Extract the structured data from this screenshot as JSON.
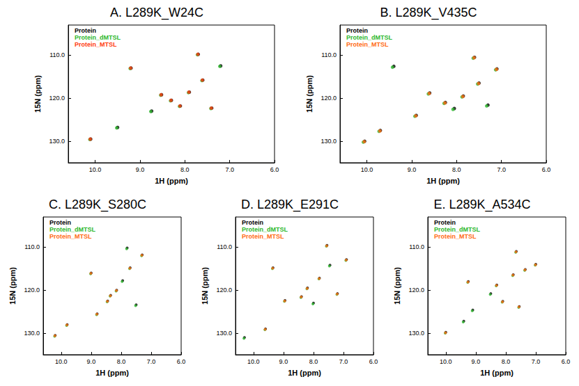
{
  "chart_data": [
    {
      "type": "scatter",
      "title": "A. L289K_W24C",
      "x_label": "1H (ppm)",
      "y_label": "15N (ppm)",
      "xlim": [
        10.6,
        6.0
      ],
      "ylim": [
        135,
        103
      ],
      "xticks": [
        {
          "value": 10,
          "label": "10.0"
        },
        {
          "value": 9,
          "label": "9.0"
        },
        {
          "value": 8,
          "label": "8.0"
        },
        {
          "value": 7,
          "label": "7.0"
        },
        {
          "value": 6,
          "label": "6.0"
        }
      ],
      "yticks": [
        {
          "value": 110,
          "label": "110.0"
        },
        {
          "value": 120,
          "label": "120.0"
        },
        {
          "value": 130,
          "label": "130.0"
        }
      ],
      "grid": false,
      "legend": "upper left",
      "marker": "circle",
      "series": [
        {
          "name": "Protein",
          "color": "#000000",
          "values": [
            [
              8.3,
              120.5
            ],
            [
              8.1,
              121.8
            ],
            [
              8.52,
              119.2
            ],
            [
              7.9,
              118.6
            ],
            [
              8.74,
              123.0
            ],
            [
              7.6,
              115.8
            ],
            [
              9.2,
              113.0
            ],
            [
              7.7,
              109.8
            ],
            [
              7.2,
              112.5
            ],
            [
              10.1,
              129.5
            ],
            [
              9.5,
              126.8
            ],
            [
              7.4,
              122.3
            ]
          ]
        },
        {
          "name": "Protein_dMTSL",
          "color": "#2eb82e",
          "values": [
            [
              8.32,
              120.6
            ],
            [
              8.12,
              121.9
            ],
            [
              8.54,
              119.3
            ],
            [
              7.92,
              118.7
            ],
            [
              8.76,
              123.1
            ],
            [
              7.62,
              115.9
            ],
            [
              9.22,
              113.1
            ],
            [
              7.72,
              109.9
            ],
            [
              7.22,
              112.6
            ],
            [
              10.12,
              129.6
            ],
            [
              9.52,
              126.9
            ],
            [
              7.42,
              122.4
            ]
          ]
        },
        {
          "name": "Protein_MTSL",
          "color": "#ff3b10",
          "values": [
            [
              8.31,
              120.5
            ],
            [
              8.11,
              121.8
            ],
            [
              8.53,
              119.2
            ],
            [
              7.91,
              118.6
            ],
            [
              7.61,
              115.8
            ],
            [
              9.21,
              113.0
            ],
            [
              7.71,
              109.8
            ],
            [
              10.11,
              129.5
            ],
            [
              7.41,
              122.3
            ]
          ]
        }
      ]
    },
    {
      "type": "scatter",
      "title": "B. L289K_V435C",
      "x_label": "1H (ppm)",
      "y_label": "15N (ppm)",
      "xlim": [
        10.6,
        6.0
      ],
      "ylim": [
        135,
        103
      ],
      "xticks": [
        {
          "value": 10,
          "label": "10.0"
        },
        {
          "value": 9,
          "label": "9.0"
        },
        {
          "value": 8,
          "label": "8.0"
        },
        {
          "value": 7,
          "label": "7.0"
        },
        {
          "value": 6,
          "label": "6.0"
        }
      ],
      "yticks": [
        {
          "value": 110,
          "label": "110.0"
        },
        {
          "value": 120,
          "label": "120.0"
        },
        {
          "value": 130,
          "label": "130.0"
        }
      ],
      "grid": false,
      "legend": "upper left",
      "marker": "circle",
      "series": [
        {
          "name": "Protein",
          "color": "#000000",
          "values": [
            [
              8.25,
              121.0
            ],
            [
              8.05,
              122.4
            ],
            [
              8.6,
              118.8
            ],
            [
              7.85,
              119.5
            ],
            [
              8.9,
              124.0
            ],
            [
              7.5,
              116.5
            ],
            [
              9.4,
              112.6
            ],
            [
              7.6,
              110.5
            ],
            [
              7.1,
              113.2
            ],
            [
              10.05,
              130.0
            ],
            [
              9.7,
              127.5
            ],
            [
              7.3,
              121.6
            ]
          ]
        },
        {
          "name": "Protein_dMTSL",
          "color": "#2eb82e",
          "values": [
            [
              8.28,
              121.2
            ],
            [
              8.08,
              122.6
            ],
            [
              8.63,
              119.0
            ],
            [
              7.88,
              119.7
            ],
            [
              8.93,
              124.2
            ],
            [
              7.53,
              116.7
            ],
            [
              9.43,
              112.8
            ],
            [
              7.63,
              110.7
            ],
            [
              7.13,
              113.4
            ],
            [
              10.08,
              130.2
            ],
            [
              9.73,
              127.7
            ],
            [
              7.33,
              121.8
            ]
          ]
        },
        {
          "name": "Protein_MTSL",
          "color": "#ff6a13",
          "values": [
            [
              8.26,
              121.1
            ],
            [
              8.61,
              118.9
            ],
            [
              7.86,
              119.6
            ],
            [
              8.91,
              124.1
            ],
            [
              7.51,
              116.6
            ],
            [
              7.61,
              110.6
            ],
            [
              7.11,
              113.3
            ],
            [
              10.06,
              130.1
            ],
            [
              9.71,
              127.6
            ]
          ]
        }
      ]
    },
    {
      "type": "scatter",
      "title": "C. L289K_S280C",
      "x_label": "1H (ppm)",
      "y_label": "15N (ppm)",
      "xlim": [
        10.6,
        6.0
      ],
      "ylim": [
        135,
        103
      ],
      "xticks": [
        {
          "value": 10,
          "label": "10.0"
        },
        {
          "value": 9,
          "label": "9.0"
        },
        {
          "value": 8,
          "label": "8.0"
        },
        {
          "value": 7,
          "label": "7.0"
        },
        {
          "value": 6,
          "label": "6.0"
        }
      ],
      "yticks": [
        {
          "value": 110,
          "label": "110.0"
        },
        {
          "value": 120,
          "label": "120.0"
        },
        {
          "value": 130,
          "label": "130.0"
        }
      ],
      "grid": false,
      "legend": "upper left",
      "marker": "circle",
      "series": [
        {
          "name": "Protein",
          "color": "#000000",
          "values": [
            [
              8.35,
              121.2
            ],
            [
              8.15,
              120.0
            ],
            [
              8.45,
              122.5
            ],
            [
              7.95,
              117.8
            ],
            [
              8.8,
              125.5
            ],
            [
              7.7,
              114.8
            ],
            [
              9.0,
              116.0
            ],
            [
              7.8,
              110.2
            ],
            [
              7.3,
              111.8
            ],
            [
              10.2,
              130.5
            ],
            [
              9.8,
              128.0
            ],
            [
              7.5,
              123.4
            ]
          ]
        },
        {
          "name": "Protein_dMTSL",
          "color": "#2eb82e",
          "values": [
            [
              8.37,
              121.4
            ],
            [
              8.17,
              120.2
            ],
            [
              8.47,
              122.7
            ],
            [
              7.97,
              118.0
            ],
            [
              8.82,
              125.7
            ],
            [
              7.72,
              115.0
            ],
            [
              9.02,
              116.2
            ],
            [
              7.82,
              110.4
            ],
            [
              7.32,
              112.0
            ],
            [
              10.22,
              130.7
            ],
            [
              9.82,
              128.2
            ],
            [
              7.52,
              123.6
            ]
          ]
        },
        {
          "name": "Protein_MTSL",
          "color": "#ff6a13",
          "values": [
            [
              8.36,
              121.3
            ],
            [
              8.16,
              120.1
            ],
            [
              8.46,
              122.6
            ],
            [
              8.81,
              125.6
            ],
            [
              7.71,
              114.9
            ],
            [
              9.01,
              116.1
            ],
            [
              7.31,
              111.9
            ],
            [
              10.21,
              130.6
            ],
            [
              9.81,
              128.1
            ]
          ]
        }
      ]
    },
    {
      "type": "scatter",
      "title": "D. L289K_E291C",
      "x_label": "1H (ppm)",
      "y_label": "15N (ppm)",
      "xlim": [
        10.6,
        6.0
      ],
      "ylim": [
        135,
        103
      ],
      "xticks": [
        {
          "value": 10,
          "label": "10.0"
        },
        {
          "value": 9,
          "label": "9.0"
        },
        {
          "value": 8,
          "label": "8.0"
        },
        {
          "value": 7,
          "label": "7.0"
        },
        {
          "value": 6,
          "label": "6.0"
        }
      ],
      "yticks": [
        {
          "value": 110,
          "label": "110.0"
        },
        {
          "value": 120,
          "label": "120.0"
        },
        {
          "value": 130,
          "label": "130.0"
        }
      ],
      "grid": false,
      "legend": "upper left",
      "marker": "circle",
      "series": [
        {
          "name": "Protein",
          "color": "#000000",
          "values": [
            [
              8.2,
              119.5
            ],
            [
              8.4,
              121.5
            ],
            [
              8.0,
              123.0
            ],
            [
              7.8,
              117.2
            ],
            [
              8.95,
              122.4
            ],
            [
              7.45,
              114.2
            ],
            [
              9.35,
              114.8
            ],
            [
              7.55,
              109.6
            ],
            [
              6.9,
              112.9
            ],
            [
              10.3,
              131.0
            ],
            [
              9.6,
              129.0
            ],
            [
              7.2,
              120.8
            ]
          ]
        },
        {
          "name": "Protein_dMTSL",
          "color": "#2eb82e",
          "values": [
            [
              8.22,
              119.7
            ],
            [
              8.42,
              121.7
            ],
            [
              8.02,
              123.2
            ],
            [
              7.82,
              117.4
            ],
            [
              8.97,
              122.6
            ],
            [
              7.47,
              114.4
            ],
            [
              9.37,
              115.0
            ],
            [
              7.57,
              109.8
            ],
            [
              6.92,
              113.1
            ],
            [
              10.32,
              131.2
            ],
            [
              9.62,
              129.2
            ],
            [
              7.22,
              121.0
            ]
          ]
        },
        {
          "name": "Protein_MTSL",
          "color": "#ff6a13",
          "values": [
            [
              8.21,
              119.6
            ],
            [
              8.41,
              121.6
            ],
            [
              7.81,
              117.3
            ],
            [
              8.96,
              122.5
            ],
            [
              9.36,
              114.9
            ],
            [
              7.56,
              109.7
            ],
            [
              6.91,
              113.0
            ],
            [
              9.61,
              129.1
            ],
            [
              7.21,
              120.9
            ]
          ]
        }
      ]
    },
    {
      "type": "scatter",
      "title": "E. L289K_A534C",
      "x_label": "1H (ppm)",
      "y_label": "15N (ppm)",
      "xlim": [
        10.6,
        6.0
      ],
      "ylim": [
        135,
        103
      ],
      "xticks": [
        {
          "value": 10,
          "label": "10.0"
        },
        {
          "value": 9,
          "label": "9.0"
        },
        {
          "value": 8,
          "label": "8.0"
        },
        {
          "value": 7,
          "label": "7.0"
        },
        {
          "value": 6,
          "label": "6.0"
        }
      ],
      "yticks": [
        {
          "value": 110,
          "label": "110.0"
        },
        {
          "value": 120,
          "label": "120.0"
        },
        {
          "value": 130,
          "label": "130.0"
        }
      ],
      "grid": false,
      "legend": "upper left",
      "marker": "circle",
      "series": [
        {
          "name": "Protein",
          "color": "#000000",
          "values": [
            [
              8.3,
              118.8
            ],
            [
              8.5,
              120.8
            ],
            [
              8.1,
              122.6
            ],
            [
              7.75,
              116.4
            ],
            [
              9.1,
              124.6
            ],
            [
              7.35,
              115.2
            ],
            [
              9.25,
              118.0
            ],
            [
              7.65,
              111.0
            ],
            [
              7.0,
              114.0
            ],
            [
              10.0,
              129.8
            ],
            [
              9.4,
              127.2
            ],
            [
              7.55,
              123.8
            ]
          ]
        },
        {
          "name": "Protein_dMTSL",
          "color": "#2eb82e",
          "values": [
            [
              8.32,
              119.0
            ],
            [
              8.52,
              121.0
            ],
            [
              8.12,
              122.8
            ],
            [
              7.77,
              116.6
            ],
            [
              9.12,
              124.8
            ],
            [
              7.37,
              115.4
            ],
            [
              9.27,
              118.2
            ],
            [
              7.67,
              111.2
            ],
            [
              7.02,
              114.2
            ],
            [
              10.02,
              130.0
            ],
            [
              9.42,
              127.4
            ],
            [
              7.57,
              124.0
            ]
          ]
        },
        {
          "name": "Protein_MTSL",
          "color": "#ff6a13",
          "values": [
            [
              8.31,
              118.9
            ],
            [
              8.11,
              122.7
            ],
            [
              7.76,
              116.5
            ],
            [
              7.36,
              115.3
            ],
            [
              9.26,
              118.1
            ],
            [
              7.66,
              111.1
            ],
            [
              7.01,
              114.1
            ],
            [
              10.01,
              129.9
            ],
            [
              7.56,
              123.9
            ]
          ]
        }
      ]
    }
  ]
}
